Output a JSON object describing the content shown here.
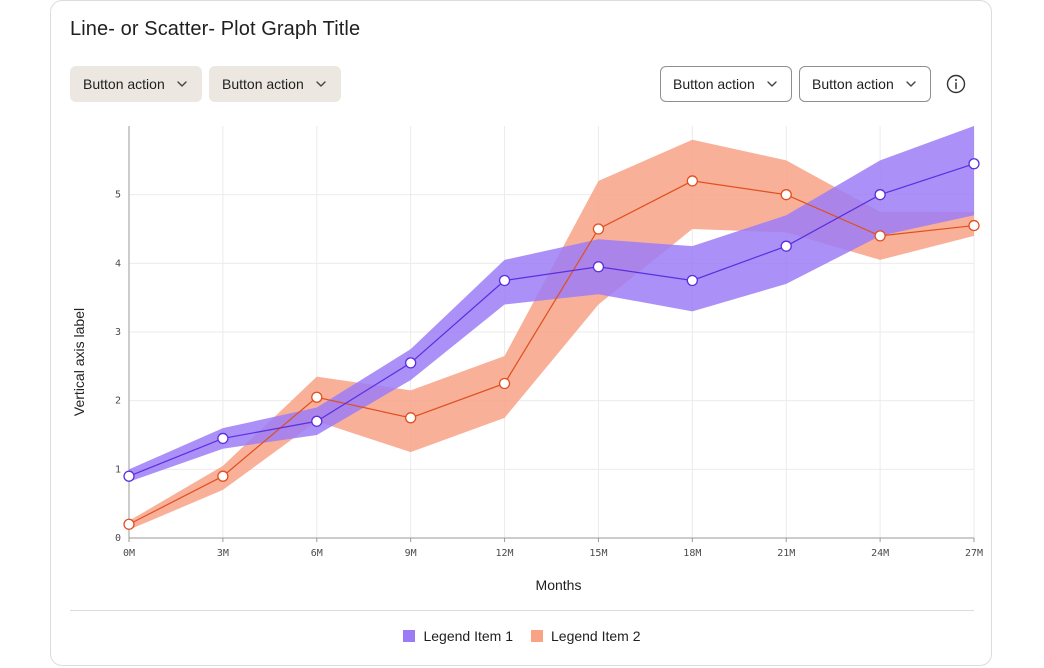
{
  "header": {
    "title": "Line- or Scatter- Plot Graph Title"
  },
  "toolbar": {
    "left_buttons": [
      "Button action",
      "Button action"
    ],
    "right_buttons": [
      "Button action",
      "Button action"
    ],
    "info_icon": "info-icon",
    "chevron_icon": "chevron-down-icon"
  },
  "legend": {
    "items": [
      "Legend Item 1",
      "Legend Item 2"
    ]
  },
  "colors": {
    "series1_line": "#5b2ee0",
    "series1_band": "#9c7cf6",
    "series2_line": "#e0501f",
    "series2_band": "#f8a286",
    "grid": "#ebebeb",
    "axis": "#9a9a9a"
  },
  "chart_data": {
    "type": "line",
    "title": "Line- or Scatter- Plot Graph Title",
    "xlabel": "Months",
    "ylabel": "Vertical axis label",
    "categories": [
      "0M",
      "3M",
      "6M",
      "9M",
      "12M",
      "15M",
      "18M",
      "21M",
      "24M",
      "27M"
    ],
    "x": [
      0,
      3,
      6,
      9,
      12,
      15,
      18,
      21,
      24,
      27
    ],
    "ylim": [
      0,
      6
    ],
    "yticks": [
      0,
      1,
      2,
      3,
      4,
      5
    ],
    "grid": true,
    "legend_position": "bottom-center",
    "series": [
      {
        "name": "Legend Item 1",
        "values": [
          0.9,
          1.45,
          1.7,
          2.55,
          3.75,
          3.95,
          3.75,
          4.25,
          5.0,
          5.45
        ],
        "band_upper": [
          1.0,
          1.6,
          1.9,
          2.75,
          4.05,
          4.35,
          4.25,
          4.7,
          5.5,
          6.0
        ],
        "band_lower": [
          0.82,
          1.3,
          1.5,
          2.3,
          3.4,
          3.55,
          3.3,
          3.7,
          4.4,
          4.7
        ]
      },
      {
        "name": "Legend Item 2",
        "values": [
          0.2,
          0.9,
          2.05,
          1.75,
          2.25,
          4.5,
          5.2,
          5.0,
          4.4,
          4.55
        ],
        "band_upper": [
          0.25,
          1.05,
          2.35,
          2.15,
          2.65,
          5.2,
          5.8,
          5.5,
          4.75,
          4.75
        ],
        "band_lower": [
          0.12,
          0.7,
          1.7,
          1.25,
          1.75,
          3.4,
          4.5,
          4.45,
          4.05,
          4.4
        ]
      }
    ]
  }
}
